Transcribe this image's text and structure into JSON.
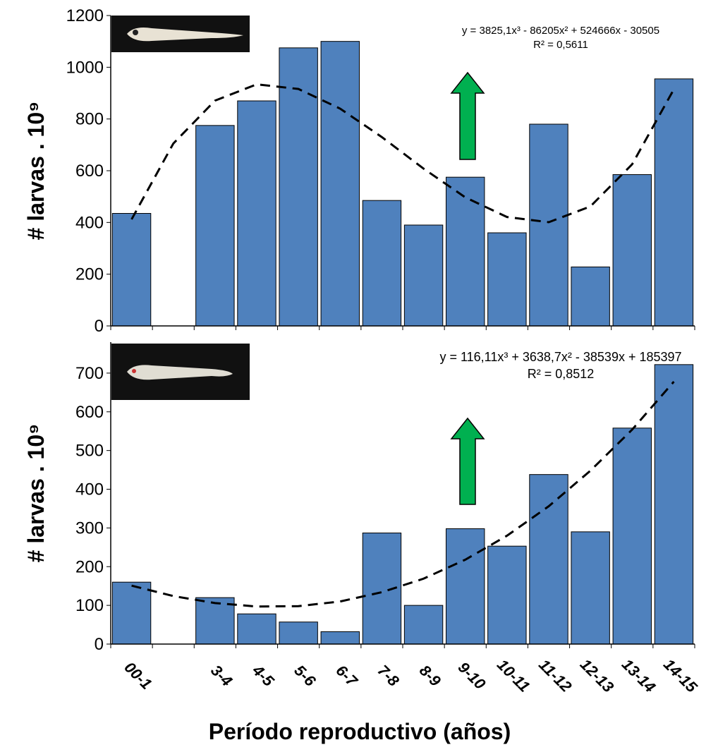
{
  "chart_data": [
    {
      "type": "bar",
      "y_title": "# larvas . 10⁹",
      "values": [
        435,
        null,
        775,
        870,
        1075,
        1100,
        485,
        390,
        575,
        360,
        780,
        228,
        585,
        955
      ],
      "color": "#4f81bd",
      "ylim": [
        0,
        1200
      ],
      "yticks": [
        0,
        200,
        400,
        600,
        800,
        1000,
        1200
      ],
      "trendline": {
        "values": [
          412,
          705,
          871,
          934,
          916,
          840,
          730,
          608,
          497,
          421,
          401,
          462,
          625,
          915
        ],
        "equation": "y = 3825,1x³ - 86205x² + 524666x - 30505",
        "r2": "R² = 0,5611"
      }
    },
    {
      "type": "bar",
      "y_title": "# larvas . 10⁹",
      "x_title": "Período reproductivo (años)",
      "categories": [
        "00-1",
        null,
        "3-4",
        "4-5",
        "5-6",
        "6-7",
        "7-8",
        "8-9",
        "9-10",
        "10-11",
        "11-12",
        "12-13",
        "13-14",
        "14-15"
      ],
      "values": [
        160,
        null,
        120,
        78,
        57,
        32,
        287,
        100,
        298,
        253,
        438,
        290,
        558,
        722
      ],
      "color": "#4f81bd",
      "ylim": [
        0,
        780
      ],
      "yticks": [
        0,
        100,
        200,
        300,
        400,
        500,
        600,
        700
      ],
      "trendline": {
        "values": [
          151,
          124,
          106,
          97,
          98,
          110,
          134,
          169,
          218,
          280,
          356,
          448,
          554,
          678
        ],
        "equation": "y = 116,11x³ + 3638,7x² - 38539x + 185397",
        "r2": "R² = 0,8512"
      }
    }
  ]
}
